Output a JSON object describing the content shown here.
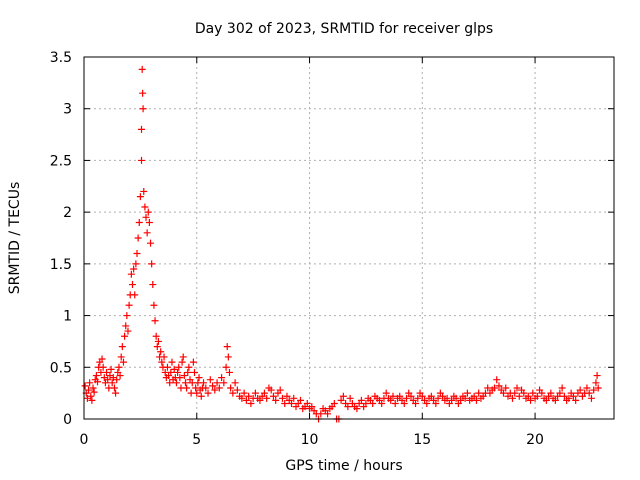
{
  "chart_data": {
    "type": "scatter",
    "title": "Day 302 of 2023, SRMTID for receiver glps",
    "xlabel": "GPS time / hours",
    "ylabel": "SRMTID / TECUs",
    "xlim": [
      0,
      23.5
    ],
    "ylim": [
      0,
      3.5
    ],
    "xticks": [
      0,
      5,
      10,
      15,
      20
    ],
    "xtick_labels": [
      "0",
      "5",
      "10",
      "15",
      "20"
    ],
    "yticks": [
      0,
      0.5,
      1,
      1.5,
      2,
      2.5,
      3,
      3.5
    ],
    "ytick_labels": [
      "0",
      "0.5",
      "1",
      "1.5",
      "2",
      "2.5",
      "3",
      "3.5"
    ],
    "grid": true,
    "marker": "+",
    "color": "#ff0000",
    "series": [
      {
        "name": "glps",
        "points": [
          [
            0.05,
            0.32
          ],
          [
            0.1,
            0.25
          ],
          [
            0.15,
            0.2
          ],
          [
            0.2,
            0.28
          ],
          [
            0.25,
            0.35
          ],
          [
            0.3,
            0.22
          ],
          [
            0.35,
            0.18
          ],
          [
            0.4,
            0.3
          ],
          [
            0.45,
            0.26
          ],
          [
            0.5,
            0.38
          ],
          [
            0.55,
            0.42
          ],
          [
            0.6,
            0.36
          ],
          [
            0.65,
            0.5
          ],
          [
            0.7,
            0.55
          ],
          [
            0.75,
            0.45
          ],
          [
            0.8,
            0.58
          ],
          [
            0.85,
            0.5
          ],
          [
            0.9,
            0.4
          ],
          [
            0.95,
            0.35
          ],
          [
            1.0,
            0.45
          ],
          [
            1.05,
            0.38
          ],
          [
            1.1,
            0.3
          ],
          [
            1.15,
            0.42
          ],
          [
            1.2,
            0.48
          ],
          [
            1.25,
            0.35
          ],
          [
            1.3,
            0.4
          ],
          [
            1.35,
            0.3
          ],
          [
            1.4,
            0.25
          ],
          [
            1.45,
            0.38
          ],
          [
            1.5,
            0.45
          ],
          [
            1.55,
            0.5
          ],
          [
            1.6,
            0.42
          ],
          [
            1.65,
            0.6
          ],
          [
            1.7,
            0.7
          ],
          [
            1.75,
            0.55
          ],
          [
            1.8,
            0.8
          ],
          [
            1.85,
            0.9
          ],
          [
            1.9,
            1.0
          ],
          [
            1.95,
            0.85
          ],
          [
            2.0,
            1.1
          ],
          [
            2.05,
            1.2
          ],
          [
            2.1,
            1.4
          ],
          [
            2.15,
            1.3
          ],
          [
            2.2,
            1.45
          ],
          [
            2.25,
            1.2
          ],
          [
            2.3,
            1.5
          ],
          [
            2.35,
            1.6
          ],
          [
            2.4,
            1.75
          ],
          [
            2.45,
            1.9
          ],
          [
            2.5,
            2.15
          ],
          [
            2.55,
            2.5
          ],
          [
            2.58,
            3.38
          ],
          [
            2.6,
            3.15
          ],
          [
            2.62,
            3.0
          ],
          [
            2.55,
            2.8
          ],
          [
            2.65,
            2.2
          ],
          [
            2.7,
            2.05
          ],
          [
            2.75,
            1.95
          ],
          [
            2.8,
            1.8
          ],
          [
            2.85,
            2.0
          ],
          [
            2.9,
            1.9
          ],
          [
            2.95,
            1.7
          ],
          [
            3.0,
            1.5
          ],
          [
            3.05,
            1.3
          ],
          [
            3.1,
            1.1
          ],
          [
            3.15,
            0.95
          ],
          [
            3.2,
            0.8
          ],
          [
            3.25,
            0.7
          ],
          [
            3.3,
            0.75
          ],
          [
            3.35,
            0.6
          ],
          [
            3.4,
            0.65
          ],
          [
            3.45,
            0.55
          ],
          [
            3.5,
            0.5
          ],
          [
            3.55,
            0.6
          ],
          [
            3.6,
            0.45
          ],
          [
            3.65,
            0.4
          ],
          [
            3.7,
            0.5
          ],
          [
            3.75,
            0.42
          ],
          [
            3.8,
            0.35
          ],
          [
            3.85,
            0.45
          ],
          [
            3.9,
            0.55
          ],
          [
            3.95,
            0.38
          ],
          [
            4.0,
            0.48
          ],
          [
            4.05,
            0.4
          ],
          [
            4.1,
            0.35
          ],
          [
            4.15,
            0.45
          ],
          [
            4.2,
            0.5
          ],
          [
            4.25,
            0.4
          ],
          [
            4.3,
            0.3
          ],
          [
            4.35,
            0.55
          ],
          [
            4.4,
            0.6
          ],
          [
            4.45,
            0.42
          ],
          [
            4.5,
            0.35
          ],
          [
            4.55,
            0.3
          ],
          [
            4.6,
            0.45
          ],
          [
            4.65,
            0.5
          ],
          [
            4.7,
            0.38
          ],
          [
            4.75,
            0.25
          ],
          [
            4.8,
            0.35
          ],
          [
            4.85,
            0.55
          ],
          [
            4.9,
            0.45
          ],
          [
            4.95,
            0.3
          ],
          [
            5.0,
            0.25
          ],
          [
            5.05,
            0.35
          ],
          [
            5.1,
            0.4
          ],
          [
            5.15,
            0.28
          ],
          [
            5.2,
            0.22
          ],
          [
            5.25,
            0.3
          ],
          [
            5.3,
            0.35
          ],
          [
            5.4,
            0.3
          ],
          [
            5.5,
            0.25
          ],
          [
            5.6,
            0.38
          ],
          [
            5.7,
            0.32
          ],
          [
            5.8,
            0.28
          ],
          [
            5.9,
            0.35
          ],
          [
            6.0,
            0.3
          ],
          [
            6.1,
            0.4
          ],
          [
            6.2,
            0.35
          ],
          [
            6.3,
            0.5
          ],
          [
            6.35,
            0.7
          ],
          [
            6.4,
            0.6
          ],
          [
            6.45,
            0.45
          ],
          [
            6.5,
            0.3
          ],
          [
            6.6,
            0.25
          ],
          [
            6.7,
            0.35
          ],
          [
            6.8,
            0.28
          ],
          [
            6.9,
            0.22
          ],
          [
            7.0,
            0.2
          ],
          [
            7.1,
            0.25
          ],
          [
            7.2,
            0.18
          ],
          [
            7.3,
            0.22
          ],
          [
            7.4,
            0.15
          ],
          [
            7.5,
            0.2
          ],
          [
            7.6,
            0.25
          ],
          [
            7.7,
            0.2
          ],
          [
            7.8,
            0.18
          ],
          [
            7.9,
            0.22
          ],
          [
            8.0,
            0.25
          ],
          [
            8.1,
            0.2
          ],
          [
            8.2,
            0.3
          ],
          [
            8.3,
            0.28
          ],
          [
            8.4,
            0.22
          ],
          [
            8.5,
            0.18
          ],
          [
            8.6,
            0.25
          ],
          [
            8.7,
            0.28
          ],
          [
            8.8,
            0.2
          ],
          [
            8.9,
            0.15
          ],
          [
            9.0,
            0.22
          ],
          [
            9.1,
            0.18
          ],
          [
            9.2,
            0.15
          ],
          [
            9.3,
            0.2
          ],
          [
            9.4,
            0.12
          ],
          [
            9.5,
            0.15
          ],
          [
            9.6,
            0.18
          ],
          [
            9.7,
            0.1
          ],
          [
            9.8,
            0.12
          ],
          [
            9.9,
            0.15
          ],
          [
            10.0,
            0.1
          ],
          [
            10.1,
            0.12
          ],
          [
            10.2,
            0.08
          ],
          [
            10.3,
            0.05
          ],
          [
            10.4,
            0.0
          ],
          [
            10.5,
            0.05
          ],
          [
            10.6,
            0.1
          ],
          [
            10.7,
            0.08
          ],
          [
            10.8,
            0.05
          ],
          [
            10.9,
            0.1
          ],
          [
            11.0,
            0.12
          ],
          [
            11.1,
            0.15
          ],
          [
            11.2,
            0.0
          ],
          [
            11.3,
            0.0
          ],
          [
            11.4,
            0.18
          ],
          [
            11.5,
            0.22
          ],
          [
            11.6,
            0.15
          ],
          [
            11.7,
            0.12
          ],
          [
            11.8,
            0.2
          ],
          [
            11.9,
            0.15
          ],
          [
            12.0,
            0.12
          ],
          [
            12.1,
            0.1
          ],
          [
            12.2,
            0.15
          ],
          [
            12.3,
            0.18
          ],
          [
            12.4,
            0.12
          ],
          [
            12.5,
            0.15
          ],
          [
            12.6,
            0.2
          ],
          [
            12.7,
            0.18
          ],
          [
            12.8,
            0.15
          ],
          [
            12.9,
            0.22
          ],
          [
            13.0,
            0.2
          ],
          [
            13.1,
            0.18
          ],
          [
            13.2,
            0.15
          ],
          [
            13.3,
            0.2
          ],
          [
            13.4,
            0.25
          ],
          [
            13.5,
            0.2
          ],
          [
            13.6,
            0.18
          ],
          [
            13.7,
            0.22
          ],
          [
            13.8,
            0.15
          ],
          [
            13.9,
            0.2
          ],
          [
            14.0,
            0.22
          ],
          [
            14.1,
            0.18
          ],
          [
            14.2,
            0.15
          ],
          [
            14.3,
            0.2
          ],
          [
            14.4,
            0.25
          ],
          [
            14.5,
            0.22
          ],
          [
            14.6,
            0.18
          ],
          [
            14.7,
            0.15
          ],
          [
            14.8,
            0.2
          ],
          [
            14.9,
            0.25
          ],
          [
            15.0,
            0.22
          ],
          [
            15.1,
            0.18
          ],
          [
            15.2,
            0.15
          ],
          [
            15.3,
            0.2
          ],
          [
            15.4,
            0.22
          ],
          [
            15.5,
            0.18
          ],
          [
            15.6,
            0.15
          ],
          [
            15.7,
            0.2
          ],
          [
            15.8,
            0.25
          ],
          [
            15.9,
            0.22
          ],
          [
            16.0,
            0.18
          ],
          [
            16.1,
            0.2
          ],
          [
            16.2,
            0.15
          ],
          [
            16.3,
            0.18
          ],
          [
            16.4,
            0.22
          ],
          [
            16.5,
            0.2
          ],
          [
            16.6,
            0.15
          ],
          [
            16.7,
            0.18
          ],
          [
            16.8,
            0.22
          ],
          [
            16.9,
            0.2
          ],
          [
            17.0,
            0.25
          ],
          [
            17.1,
            0.18
          ],
          [
            17.2,
            0.2
          ],
          [
            17.3,
            0.22
          ],
          [
            17.4,
            0.18
          ],
          [
            17.5,
            0.25
          ],
          [
            17.6,
            0.2
          ],
          [
            17.7,
            0.22
          ],
          [
            17.8,
            0.25
          ],
          [
            17.9,
            0.3
          ],
          [
            18.0,
            0.25
          ],
          [
            18.1,
            0.28
          ],
          [
            18.2,
            0.3
          ],
          [
            18.3,
            0.38
          ],
          [
            18.4,
            0.32
          ],
          [
            18.5,
            0.28
          ],
          [
            18.6,
            0.25
          ],
          [
            18.7,
            0.3
          ],
          [
            18.8,
            0.22
          ],
          [
            18.9,
            0.25
          ],
          [
            19.0,
            0.2
          ],
          [
            19.1,
            0.25
          ],
          [
            19.2,
            0.3
          ],
          [
            19.3,
            0.22
          ],
          [
            19.4,
            0.28
          ],
          [
            19.5,
            0.25
          ],
          [
            19.6,
            0.2
          ],
          [
            19.7,
            0.22
          ],
          [
            19.8,
            0.18
          ],
          [
            19.9,
            0.25
          ],
          [
            20.0,
            0.2
          ],
          [
            20.1,
            0.22
          ],
          [
            20.2,
            0.28
          ],
          [
            20.3,
            0.25
          ],
          [
            20.4,
            0.2
          ],
          [
            20.5,
            0.18
          ],
          [
            20.6,
            0.22
          ],
          [
            20.7,
            0.25
          ],
          [
            20.8,
            0.2
          ],
          [
            20.9,
            0.18
          ],
          [
            21.0,
            0.22
          ],
          [
            21.1,
            0.25
          ],
          [
            21.2,
            0.3
          ],
          [
            21.3,
            0.22
          ],
          [
            21.4,
            0.18
          ],
          [
            21.5,
            0.2
          ],
          [
            21.6,
            0.25
          ],
          [
            21.7,
            0.22
          ],
          [
            21.8,
            0.18
          ],
          [
            21.9,
            0.25
          ],
          [
            22.0,
            0.28
          ],
          [
            22.1,
            0.22
          ],
          [
            22.2,
            0.25
          ],
          [
            22.3,
            0.3
          ],
          [
            22.4,
            0.25
          ],
          [
            22.5,
            0.2
          ],
          [
            22.6,
            0.28
          ],
          [
            22.7,
            0.35
          ],
          [
            22.75,
            0.42
          ],
          [
            22.8,
            0.3
          ]
        ]
      }
    ]
  }
}
